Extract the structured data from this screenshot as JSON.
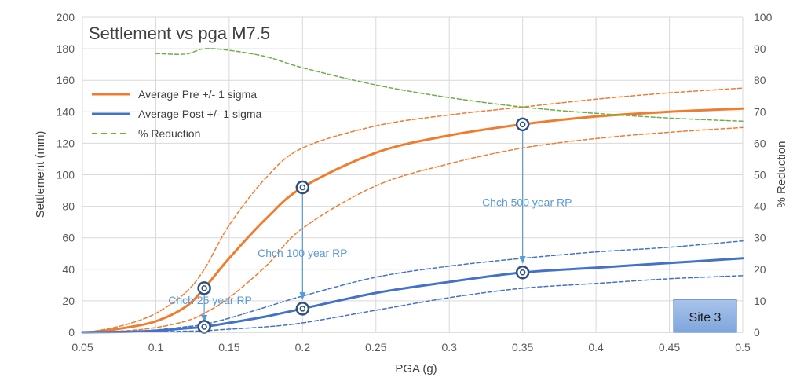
{
  "chart_data": {
    "type": "line",
    "title": "Settlement vs pga M7.5",
    "xlabel": "PGA (g)",
    "ylabel": "Settlement (mm)",
    "y2label": "% Reduction",
    "xlim": [
      0.05,
      0.5
    ],
    "ylim": [
      0,
      200
    ],
    "y2lim": [
      0,
      100
    ],
    "xticks": [
      "0.05",
      "0.1",
      "0.15",
      "0.2",
      "0.25",
      "0.3",
      "0.35",
      "0.4",
      "0.45",
      "0.5"
    ],
    "xtick_values": [
      0.05,
      0.1,
      0.15,
      0.2,
      0.25,
      0.3,
      0.35,
      0.4,
      0.45,
      0.5
    ],
    "yticks": [
      "0",
      "20",
      "40",
      "60",
      "80",
      "100",
      "120",
      "140",
      "160",
      "180",
      "200"
    ],
    "ytick_values": [
      0,
      20,
      40,
      60,
      80,
      100,
      120,
      140,
      160,
      180,
      200
    ],
    "y2ticks": [
      "0",
      "10",
      "20",
      "30",
      "40",
      "50",
      "60",
      "70",
      "80",
      "90",
      "100"
    ],
    "y2tick_values": [
      0,
      10,
      20,
      30,
      40,
      50,
      60,
      70,
      80,
      90,
      100
    ],
    "grid": true,
    "legend": [
      {
        "label": "Average Pre +/- 1 sigma",
        "color": "#ed7d31",
        "style": "solid"
      },
      {
        "label": "Average Post +/- 1 sigma",
        "color": "#4472c4",
        "style": "solid"
      },
      {
        "label": "% Reduction",
        "color": "#70ad47",
        "style": "dashed"
      }
    ],
    "series": [
      {
        "name": "Average Pre",
        "color": "#ed7d31",
        "style": "solid",
        "width": 3,
        "axis": "left",
        "x": [
          0.05,
          0.06,
          0.08,
          0.1,
          0.12,
          0.133,
          0.15,
          0.175,
          0.2,
          0.25,
          0.3,
          0.35,
          0.4,
          0.45,
          0.5
        ],
        "y": [
          0,
          0.5,
          3,
          7,
          16,
          28,
          47,
          72,
          92,
          114,
          125,
          132,
          137,
          140,
          142
        ]
      },
      {
        "name": "Pre + 1 sigma",
        "color": "#ed7d31",
        "style": "dashed",
        "width": 1.5,
        "axis": "left",
        "x": [
          0.05,
          0.06,
          0.08,
          0.1,
          0.12,
          0.133,
          0.15,
          0.175,
          0.2,
          0.25,
          0.3,
          0.35,
          0.4,
          0.45,
          0.5
        ],
        "y": [
          0,
          1,
          5,
          12,
          25,
          40,
          68,
          98,
          117,
          131,
          138,
          143,
          148,
          152,
          155
        ]
      },
      {
        "name": "Pre - 1 sigma",
        "color": "#ed7d31",
        "style": "dashed",
        "width": 1.5,
        "axis": "left",
        "x": [
          0.05,
          0.06,
          0.08,
          0.1,
          0.12,
          0.133,
          0.15,
          0.175,
          0.2,
          0.25,
          0.3,
          0.35,
          0.4,
          0.45,
          0.5
        ],
        "y": [
          0,
          0.3,
          1,
          3,
          7,
          12,
          22,
          42,
          66,
          93,
          107,
          117,
          123,
          127,
          130
        ]
      },
      {
        "name": "Average Post",
        "color": "#4472c4",
        "style": "solid",
        "width": 3,
        "axis": "left",
        "x": [
          0.05,
          0.08,
          0.1,
          0.12,
          0.133,
          0.15,
          0.175,
          0.2,
          0.25,
          0.3,
          0.35,
          0.4,
          0.45,
          0.5
        ],
        "y": [
          0,
          0.3,
          1,
          2.5,
          3.5,
          6,
          10,
          15,
          25,
          32,
          38,
          41,
          44,
          47
        ]
      },
      {
        "name": "Post + 1 sigma",
        "color": "#4472c4",
        "style": "dashed",
        "width": 1.5,
        "axis": "left",
        "x": [
          0.05,
          0.08,
          0.1,
          0.12,
          0.133,
          0.15,
          0.175,
          0.2,
          0.25,
          0.3,
          0.35,
          0.4,
          0.45,
          0.5
        ],
        "y": [
          0,
          0.5,
          1.5,
          3.5,
          5,
          9,
          16,
          23,
          35,
          42,
          47,
          51,
          54,
          58
        ]
      },
      {
        "name": "Post - 1 sigma",
        "color": "#4472c4",
        "style": "dashed",
        "width": 1.5,
        "axis": "left",
        "x": [
          0.05,
          0.08,
          0.1,
          0.12,
          0.133,
          0.15,
          0.175,
          0.2,
          0.25,
          0.3,
          0.35,
          0.4,
          0.45,
          0.5
        ],
        "y": [
          0,
          0.1,
          0.3,
          0.7,
          1,
          2,
          3.5,
          6,
          14,
          22,
          28,
          31,
          34,
          36
        ]
      },
      {
        "name": "% Reduction",
        "color": "#70ad47",
        "style": "dashed",
        "width": 1.5,
        "axis": "right",
        "x": [
          0.1,
          0.12,
          0.133,
          0.15,
          0.175,
          0.2,
          0.25,
          0.3,
          0.35,
          0.4,
          0.45,
          0.5
        ],
        "y": [
          88.5,
          88.3,
          90,
          89.5,
          87.5,
          84,
          78.5,
          74.5,
          71.5,
          69.5,
          68,
          67
        ]
      }
    ],
    "markers": [
      {
        "x": 0.133,
        "y": 28
      },
      {
        "x": 0.133,
        "y": 3.5
      },
      {
        "x": 0.2,
        "y": 92
      },
      {
        "x": 0.2,
        "y": 15
      },
      {
        "x": 0.35,
        "y": 132
      },
      {
        "x": 0.35,
        "y": 38
      }
    ],
    "arrows": [
      {
        "x": 0.133,
        "y_from": 28,
        "y_to": 6.5
      },
      {
        "x": 0.2,
        "y_from": 92,
        "y_to": 21
      },
      {
        "x": 0.35,
        "y_from": 132,
        "y_to": 44
      }
    ],
    "annotations": [
      {
        "text": "Chch 25 year RP",
        "x": 0.137,
        "y": 18
      },
      {
        "text": "Chch 100 year RP",
        "x": 0.2,
        "y": 48
      },
      {
        "text": "Chch 500 year RP",
        "x": 0.353,
        "y": 80
      }
    ],
    "site_label": "Site 3"
  }
}
